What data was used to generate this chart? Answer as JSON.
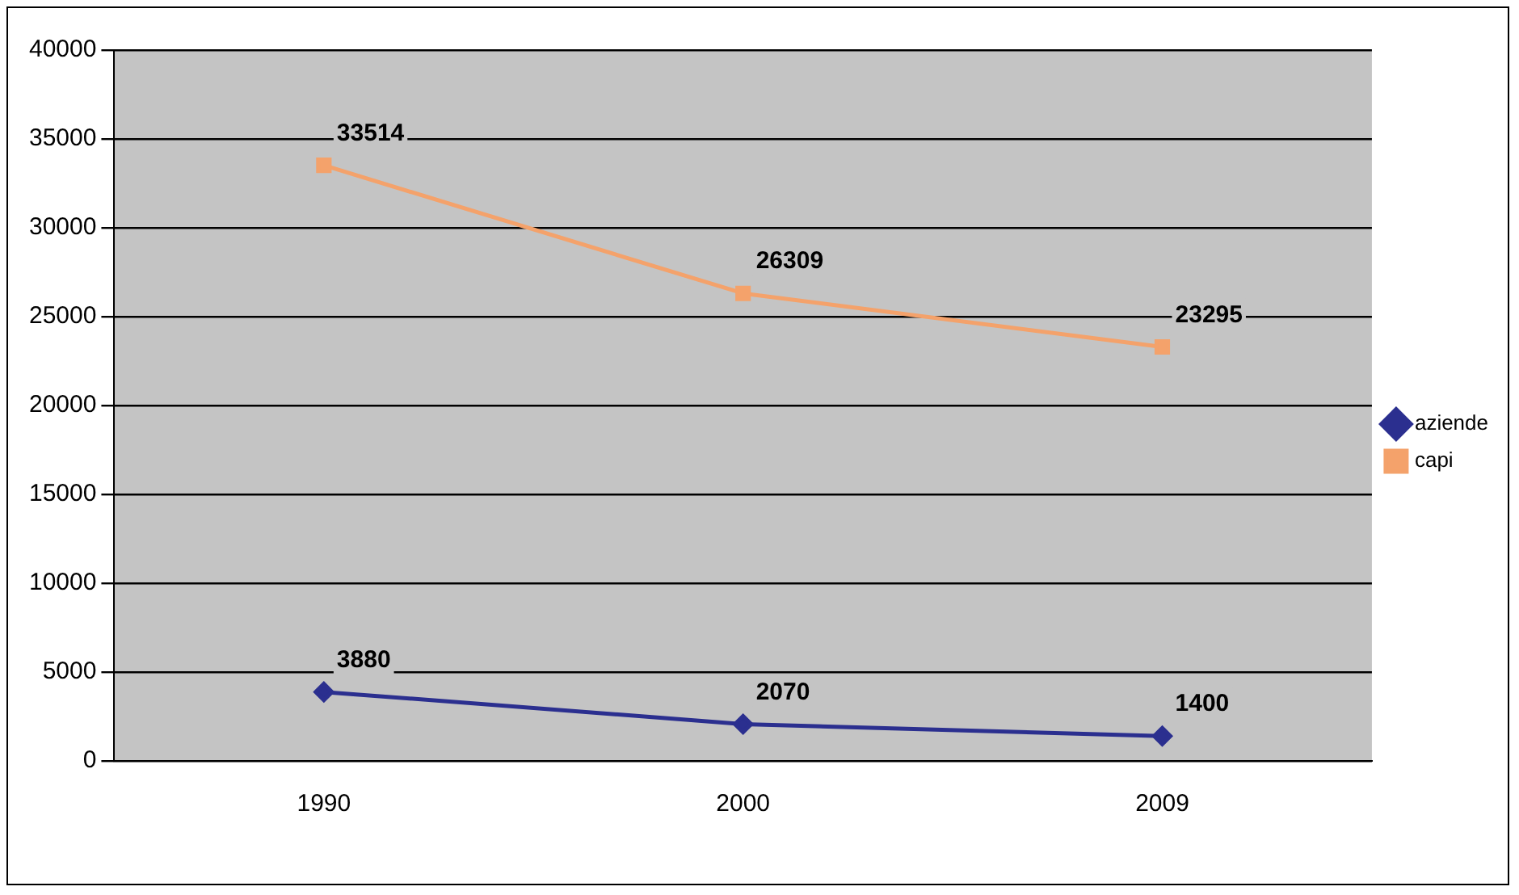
{
  "chart_data": {
    "type": "line",
    "categories": [
      "1990",
      "2000",
      "2009"
    ],
    "series": [
      {
        "name": "aziende",
        "color": "#2b2f8f",
        "values": [
          3880,
          2070,
          1400
        ],
        "marker": "diamond"
      },
      {
        "name": "capi",
        "color": "#f4a26b",
        "values": [
          33514,
          26309,
          23295
        ],
        "marker": "square"
      }
    ],
    "ylim": [
      0,
      40000
    ],
    "yticks": [
      0,
      5000,
      10000,
      15000,
      20000,
      25000,
      30000,
      35000,
      40000
    ],
    "grid": "y",
    "legend": "right",
    "data_labels": true
  }
}
